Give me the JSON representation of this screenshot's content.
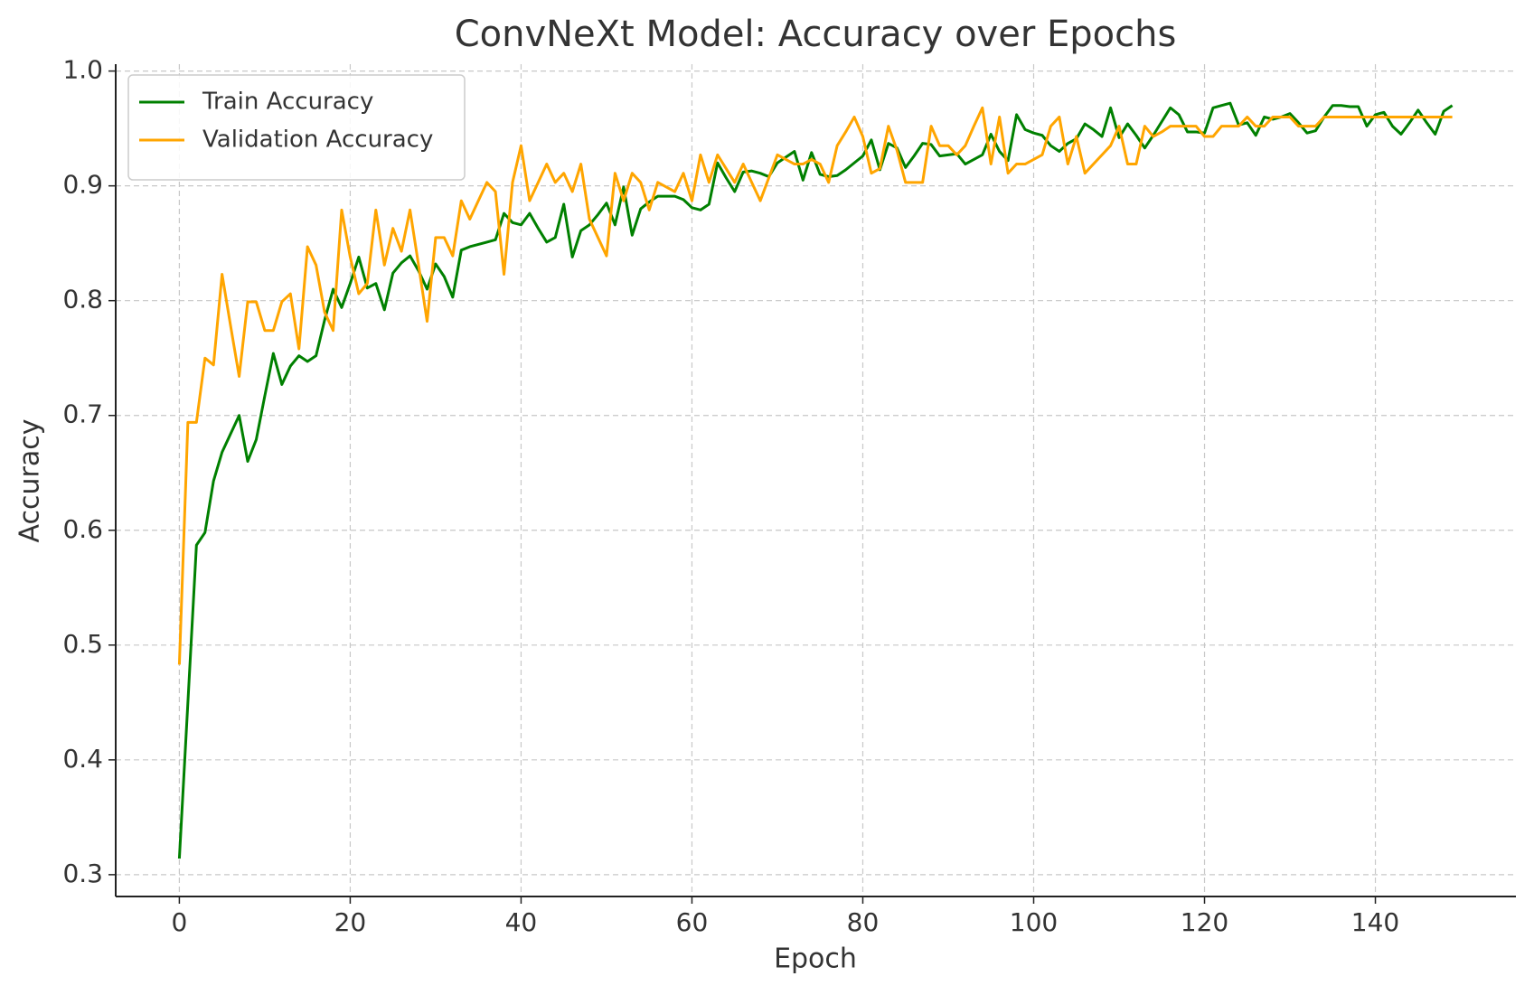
{
  "chart_data": {
    "type": "line",
    "title": "ConvNeXt Model: Accuracy over Epochs",
    "xlabel": "Epoch",
    "ylabel": "Accuracy",
    "x": [
      0,
      1,
      2,
      3,
      4,
      5,
      6,
      7,
      8,
      9,
      10,
      11,
      12,
      13,
      14,
      15,
      16,
      17,
      18,
      19,
      20,
      21,
      22,
      23,
      24,
      25,
      26,
      27,
      28,
      29,
      30,
      31,
      32,
      33,
      34,
      35,
      36,
      37,
      38,
      39,
      40,
      41,
      42,
      43,
      44,
      45,
      46,
      47,
      48,
      49,
      50,
      51,
      52,
      53,
      54,
      55,
      56,
      57,
      58,
      59,
      60,
      61,
      62,
      63,
      64,
      65,
      66,
      67,
      68,
      69,
      70,
      71,
      72,
      73,
      74,
      75,
      76,
      77,
      78,
      79,
      80,
      81,
      82,
      83,
      84,
      85,
      86,
      87,
      88,
      89,
      90,
      91,
      92,
      93,
      94,
      95,
      96,
      97,
      98,
      99,
      100,
      101,
      102,
      103,
      104,
      105,
      106,
      107,
      108,
      109,
      110,
      111,
      112,
      113,
      114,
      115,
      116,
      117,
      118,
      119,
      120,
      121,
      122,
      123,
      124,
      125,
      126,
      127,
      128,
      129,
      130,
      131,
      132,
      133,
      134,
      135,
      136,
      137,
      138,
      139,
      140,
      141,
      142,
      143,
      144,
      145,
      146,
      147,
      148,
      149
    ],
    "series": [
      {
        "name": "Train Accuracy",
        "color": "#008000",
        "values": [
          0.314,
          0.45,
          0.587,
          0.598,
          0.643,
          0.668,
          0.684,
          0.7,
          0.66,
          0.679,
          0.717,
          0.754,
          0.727,
          0.743,
          0.752,
          0.747,
          0.752,
          0.783,
          0.81,
          0.794,
          0.815,
          0.838,
          0.811,
          0.815,
          0.792,
          0.824,
          0.833,
          0.839,
          0.826,
          0.81,
          0.832,
          0.821,
          0.803,
          0.844,
          0.847,
          0.849,
          0.851,
          0.853,
          0.876,
          0.868,
          0.866,
          0.876,
          0.863,
          0.851,
          0.855,
          0.884,
          0.838,
          0.861,
          0.866,
          0.875,
          0.885,
          0.866,
          0.899,
          0.857,
          0.88,
          0.886,
          0.891,
          0.891,
          0.891,
          0.888,
          0.881,
          0.879,
          0.884,
          0.92,
          0.907,
          0.895,
          0.912,
          0.913,
          0.911,
          0.908,
          0.92,
          0.925,
          0.93,
          0.905,
          0.929,
          0.91,
          0.908,
          0.909,
          0.914,
          0.92,
          0.926,
          0.94,
          0.914,
          0.937,
          0.933,
          0.916,
          0.926,
          0.937,
          0.936,
          0.926,
          0.927,
          0.928,
          0.919,
          0.923,
          0.927,
          0.945,
          0.93,
          0.922,
          0.962,
          0.949,
          0.946,
          0.944,
          0.935,
          0.93,
          0.937,
          0.941,
          0.954,
          0.949,
          0.943,
          0.968,
          0.942,
          0.954,
          0.944,
          0.933,
          0.944,
          0.956,
          0.968,
          0.962,
          0.947,
          0.947,
          0.946,
          0.968,
          0.97,
          0.972,
          0.953,
          0.955,
          0.944,
          0.96,
          0.958,
          0.96,
          0.963,
          0.955,
          0.946,
          0.948,
          0.96,
          0.97,
          0.97,
          0.969,
          0.969,
          0.952,
          0.962,
          0.964,
          0.952,
          0.945,
          0.955,
          0.966,
          0.955,
          0.945,
          0.965,
          0.97
        ]
      },
      {
        "name": "Validation Accuracy",
        "color": "#ffa500",
        "values": [
          0.483,
          0.694,
          0.694,
          0.75,
          0.744,
          0.823,
          0.778,
          0.734,
          0.799,
          0.799,
          0.774,
          0.774,
          0.799,
          0.806,
          0.758,
          0.847,
          0.831,
          0.79,
          0.774,
          0.879,
          0.838,
          0.806,
          0.815,
          0.879,
          0.831,
          0.863,
          0.843,
          0.879,
          0.831,
          0.782,
          0.855,
          0.855,
          0.839,
          0.887,
          0.871,
          0.887,
          0.903,
          0.895,
          0.823,
          0.903,
          0.935,
          0.887,
          0.903,
          0.919,
          0.903,
          0.911,
          0.895,
          0.919,
          0.871,
          0.855,
          0.839,
          0.911,
          0.887,
          0.911,
          0.903,
          0.879,
          0.903,
          0.899,
          0.895,
          0.911,
          0.887,
          0.927,
          0.903,
          0.927,
          0.915,
          0.903,
          0.919,
          0.903,
          0.887,
          0.907,
          0.927,
          0.923,
          0.919,
          0.919,
          0.923,
          0.919,
          0.903,
          0.935,
          0.947,
          0.96,
          0.943,
          0.911,
          0.915,
          0.952,
          0.931,
          0.903,
          0.903,
          0.903,
          0.952,
          0.935,
          0.935,
          0.927,
          0.935,
          0.952,
          0.968,
          0.919,
          0.96,
          0.911,
          0.919,
          0.919,
          0.923,
          0.927,
          0.952,
          0.96,
          0.919,
          0.943,
          0.911,
          0.919,
          0.927,
          0.935,
          0.952,
          0.919,
          0.919,
          0.952,
          0.943,
          0.947,
          0.952,
          0.952,
          0.952,
          0.952,
          0.943,
          0.943,
          0.952,
          0.952,
          0.952,
          0.96,
          0.952,
          0.952,
          0.96,
          0.96,
          0.96,
          0.952,
          0.952,
          0.952,
          0.96,
          0.96,
          0.96,
          0.96,
          0.96,
          0.96,
          0.96,
          0.96,
          0.96,
          0.96,
          0.96,
          0.96,
          0.96,
          0.96,
          0.96,
          0.96
        ]
      }
    ],
    "xlim": [
      -7.45,
      156.45
    ],
    "ylim": [
      0.281,
      1.006
    ],
    "xticks": [
      0,
      20,
      40,
      60,
      80,
      100,
      120,
      140
    ],
    "yticks": [
      0.3,
      0.4,
      0.5,
      0.6,
      0.7,
      0.8,
      0.9,
      {
        "value": 1,
        "label": "1.0"
      }
    ],
    "grid": true,
    "legend": "upper left"
  }
}
